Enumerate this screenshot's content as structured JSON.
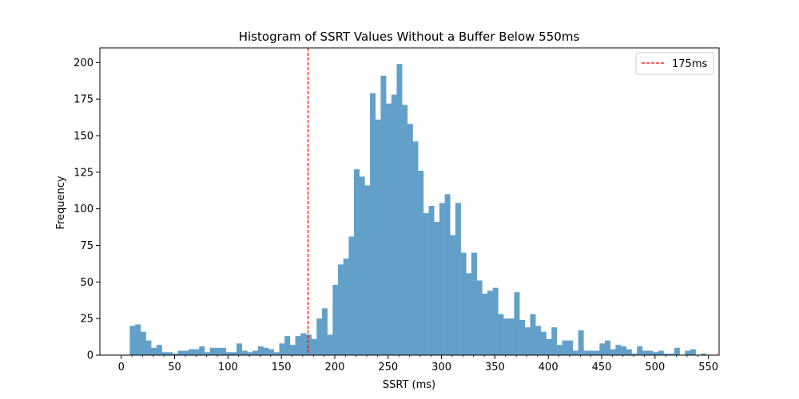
{
  "chart_data": {
    "type": "bar",
    "title": "Histogram of SSRT Values Without a Buffer Below 550ms",
    "xlabel": "SSRT (ms)",
    "ylabel": "Frequency",
    "xlim": [
      -20,
      560
    ],
    "ylim": [
      0,
      210
    ],
    "x_major_ticks": [
      0,
      50,
      100,
      150,
      200,
      250,
      300,
      350,
      400,
      450,
      500,
      550
    ],
    "y_major_ticks": [
      0,
      25,
      50,
      75,
      100,
      125,
      150,
      175,
      200
    ],
    "x_minor_step": 10,
    "bar_color": "#62a0ca",
    "bin_start": 8,
    "bin_width": 5,
    "values": [
      20,
      21,
      16,
      10,
      5,
      7,
      2,
      2,
      1,
      3,
      3,
      4,
      4,
      6,
      2,
      5,
      5,
      5,
      2,
      2,
      8,
      3,
      2,
      3,
      6,
      5,
      4,
      2,
      8,
      13,
      7,
      13,
      15,
      14,
      11,
      25,
      32,
      14,
      48,
      62,
      66,
      81,
      127,
      122,
      116,
      179,
      161,
      191,
      172,
      178,
      199,
      171,
      158,
      146,
      126,
      97,
      102,
      91,
      104,
      110,
      82,
      104,
      70,
      56,
      70,
      51,
      42,
      44,
      46,
      28,
      25,
      25,
      43,
      24,
      19,
      28,
      20,
      16,
      11,
      19,
      7,
      10,
      10,
      3,
      17,
      3,
      3,
      3,
      8,
      10,
      4,
      7,
      6,
      4,
      1,
      6,
      3,
      3,
      2,
      3,
      1,
      1,
      5,
      0,
      3,
      4,
      0,
      1
    ],
    "reference_line": {
      "x": 175,
      "label": "175ms",
      "color": "#ff0000",
      "style": "dashed"
    },
    "legend": {
      "position": "top-right",
      "entries": [
        "175ms"
      ]
    },
    "grid": false
  }
}
